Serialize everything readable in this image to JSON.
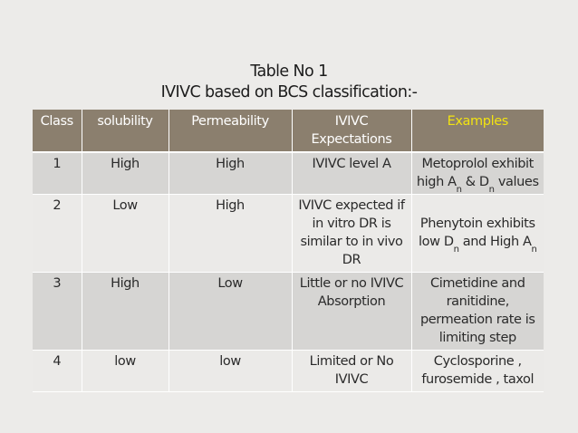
{
  "title": {
    "line1": "Table No 1",
    "line2": "IVIVC based on BCS classification:-"
  },
  "table": {
    "headers": [
      "Class",
      "solubility",
      "Permeability",
      "IVIVC Expectations",
      "Examples"
    ],
    "rows": [
      {
        "class": "1",
        "solubility": "High",
        "permeability": "High",
        "expectation": "IVIVC  level  A",
        "example": {
          "prefix": "Metoprolol exhibit high A",
          "sub1": "n",
          "mid": " & D",
          "sub2": "n",
          "suffix": " values"
        }
      },
      {
        "class": "2",
        "solubility": "Low",
        "permeability": "High",
        "expectation": "IVIVC expected if in vitro DR is similar to in vivo DR",
        "example": {
          "prefix": "Phenytoin exhibits low D",
          "sub1": "n",
          "mid": " and High A",
          "sub2": "n",
          "suffix": ""
        }
      },
      {
        "class": "3",
        "solubility": "High",
        "permeability": "Low",
        "expectation": "Little or no IVIVC Absorption",
        "example": {
          "text": "Cimetidine and ranitidine, permeation rate is limiting step"
        }
      },
      {
        "class": "4",
        "solubility": "low",
        "permeability": "low",
        "expectation": "Limited or No IVIVC",
        "example": {
          "text": "Cyclosporine , furosemide , taxol"
        }
      }
    ]
  },
  "colors": {
    "header_bg": "#8b7f6e",
    "header_text": "#ffffff",
    "examples_header_text": "#f2e311",
    "row_odd_bg": "#d6d5d3",
    "row_even_bg": "#ebeae8",
    "page_bg": "#ecebe9"
  }
}
